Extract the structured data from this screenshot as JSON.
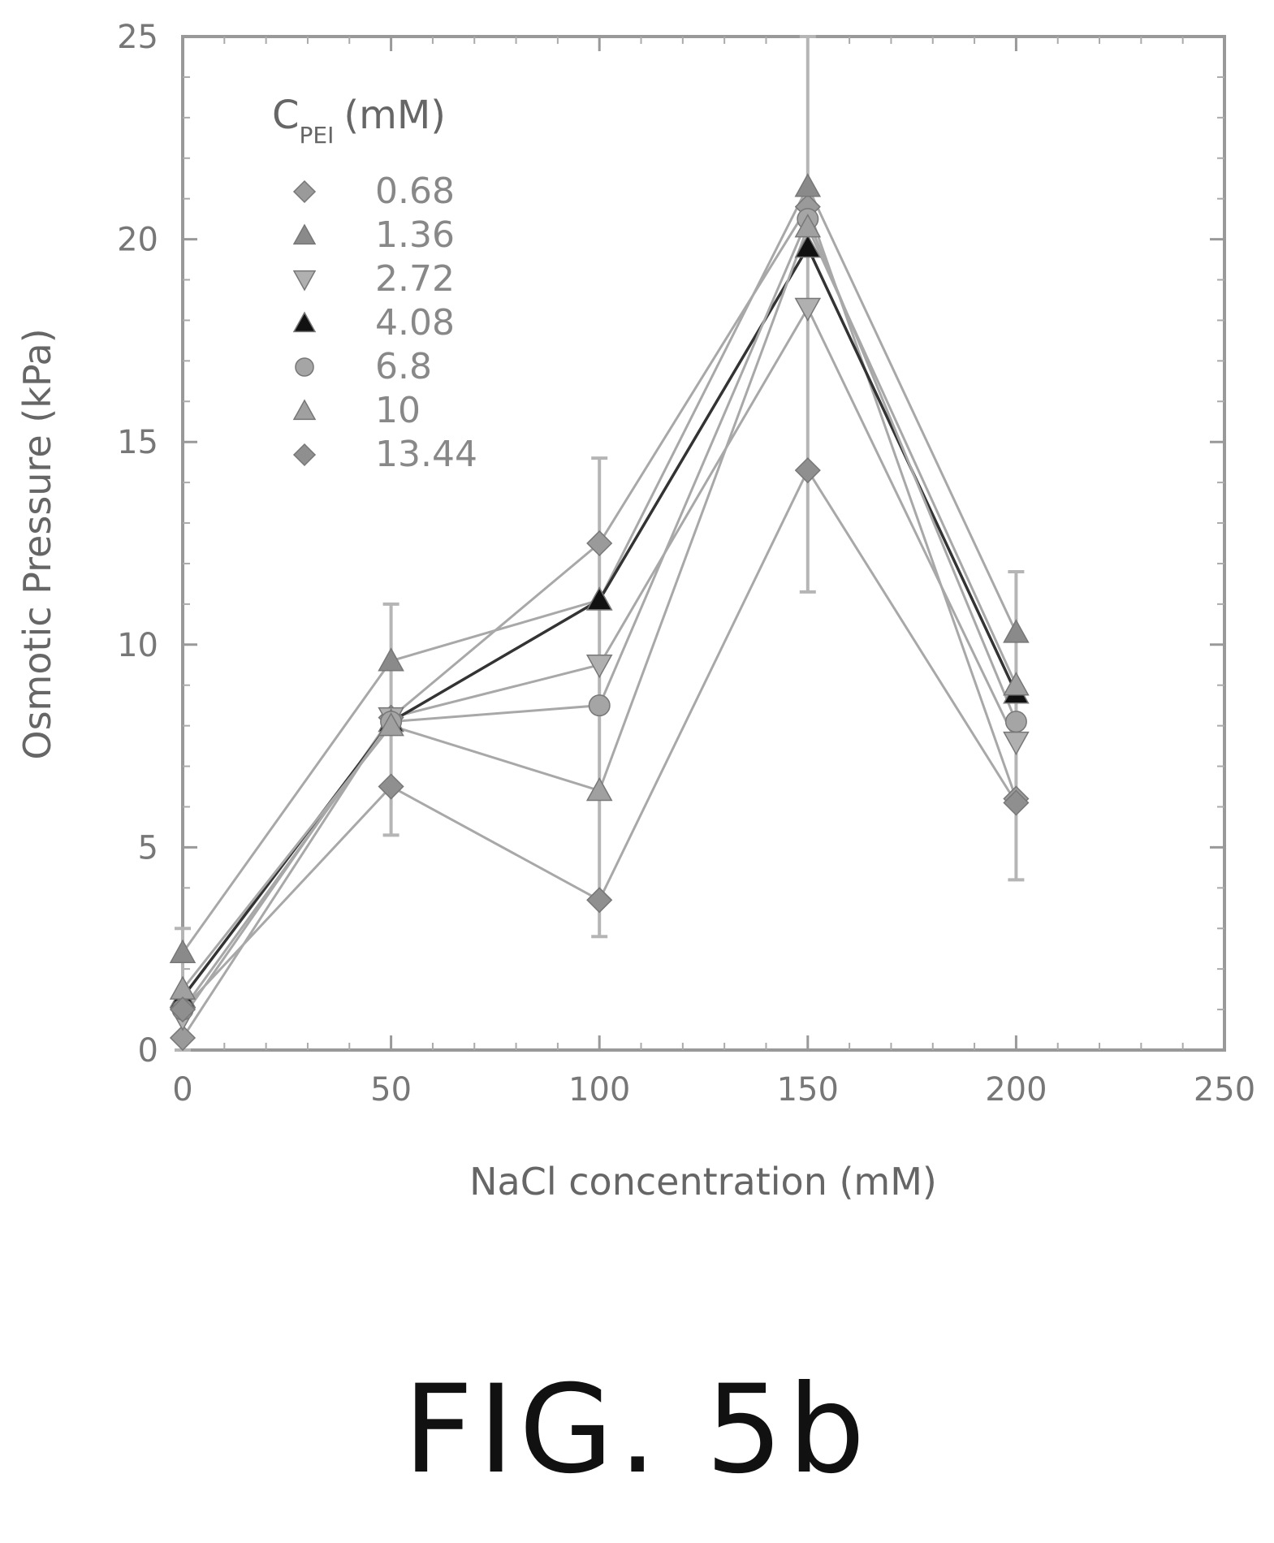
{
  "chart_data": {
    "type": "line",
    "title": "",
    "xlabel": "NaCl concentration (mM)",
    "ylabel": "Osmotic Pressure (kPa)",
    "xlim": [
      0,
      250
    ],
    "ylim": [
      0,
      25
    ],
    "x_ticks": [
      "0",
      "50",
      "100",
      "150",
      "200",
      "250"
    ],
    "y_ticks": [
      "0",
      "5",
      "10",
      "15",
      "20",
      "25"
    ],
    "x": [
      0,
      50,
      100,
      150,
      200
    ],
    "legend": {
      "title_main": "C",
      "title_sub": "PEI",
      "title_unit": "(mM)",
      "placement": "top-left"
    },
    "error_bars": {
      "x": [
        0,
        50,
        100,
        150,
        200
      ],
      "low": [
        0,
        5.3,
        2.8,
        11.3,
        4.2
      ],
      "high": [
        3,
        11,
        14.6,
        25,
        11.8
      ]
    },
    "series": [
      {
        "name": "0.68",
        "marker": "diamond",
        "color": "#9a9a9a",
        "values": [
          0.3,
          8.2,
          12.5,
          20.8,
          6.2
        ]
      },
      {
        "name": "1.36",
        "marker": "triangle-up",
        "color": "#8a8a8a",
        "values": [
          2.4,
          9.6,
          11.1,
          21.3,
          10.3
        ]
      },
      {
        "name": "2.72",
        "marker": "triangle-down",
        "color": "#b0b0b0",
        "values": [
          0.8,
          8.2,
          9.5,
          18.3,
          7.6
        ]
      },
      {
        "name": "4.08",
        "marker": "triangle-up",
        "color": "#111111",
        "values": [
          1.3,
          8.1,
          11.1,
          19.8,
          8.8
        ]
      },
      {
        "name": "6.8",
        "marker": "circle",
        "color": "#a5a5a5",
        "values": [
          1.0,
          8.1,
          8.5,
          20.5,
          8.1
        ]
      },
      {
        "name": "10",
        "marker": "triangle-up",
        "color": "#a0a0a0",
        "values": [
          1.5,
          8.0,
          6.4,
          20.3,
          9.0
        ]
      },
      {
        "name": "13.44",
        "marker": "diamond",
        "color": "#8f8f8f",
        "values": [
          1.0,
          6.5,
          3.7,
          14.3,
          6.1
        ]
      }
    ]
  },
  "caption": "FIG. 5b"
}
